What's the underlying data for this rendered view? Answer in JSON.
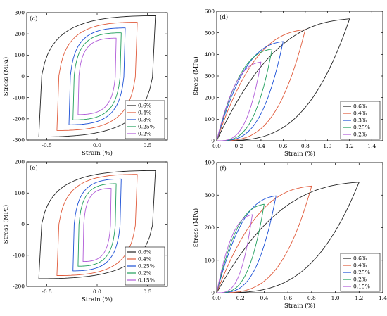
{
  "chart_data": [
    {
      "id": "c",
      "type": "line",
      "panel_label": "(c)",
      "xlabel": "Strain (%)",
      "ylabel": "Stress (MPa)",
      "xlim": [
        -0.7,
        0.7
      ],
      "ylim": [
        -300,
        300
      ],
      "xticks": [
        -0.5,
        0.0,
        0.5
      ],
      "xtick_labels": [
        "-0.5",
        "0.0",
        "0.5"
      ],
      "yticks": [
        -300,
        -200,
        -100,
        0,
        100,
        200,
        300
      ],
      "ytick_labels": [
        "-300",
        "-200",
        "-100",
        "0",
        "100",
        "200",
        "300"
      ],
      "legend_position": "bottom-right",
      "loop_kind": "symmetric",
      "series": [
        {
          "name": "0.6%",
          "color": "#222222",
          "strain_amplitude": 0.6,
          "x_peak": 0.58,
          "y_peak": 285,
          "x_min": -0.58,
          "y_min": -285
        },
        {
          "name": "0.4%",
          "color": "#e05a3a",
          "strain_amplitude": 0.4,
          "x_peak": 0.4,
          "y_peak": 255,
          "x_min": -0.4,
          "y_min": -255
        },
        {
          "name": "0.3%",
          "color": "#1a4fd6",
          "strain_amplitude": 0.3,
          "x_peak": 0.28,
          "y_peak": 228,
          "x_min": -0.28,
          "y_min": -228
        },
        {
          "name": "0.25%",
          "color": "#1f9e5a",
          "strain_amplitude": 0.25,
          "x_peak": 0.24,
          "y_peak": 205,
          "x_min": -0.24,
          "y_min": -205
        },
        {
          "name": "0.2%",
          "color": "#b05ad8",
          "strain_amplitude": 0.2,
          "x_peak": 0.19,
          "y_peak": 180,
          "x_min": -0.19,
          "y_min": -180
        }
      ]
    },
    {
      "id": "d",
      "type": "line",
      "panel_label": "(d)",
      "xlabel": "Strain (%)",
      "ylabel": "Stress (MPa)",
      "xlim": [
        0.0,
        1.5
      ],
      "ylim": [
        0,
        600
      ],
      "xticks": [
        0.0,
        0.2,
        0.4,
        0.6,
        0.8,
        1.0,
        1.2,
        1.4
      ],
      "xtick_labels": [
        "0.0",
        "0.2",
        "0.4",
        "0.6",
        "0.8",
        "1.0",
        "1.2",
        "1.4"
      ],
      "yticks": [
        0,
        100,
        200,
        300,
        400,
        500,
        600
      ],
      "ytick_labels": [
        "0",
        "100",
        "200",
        "300",
        "400",
        "500",
        "600"
      ],
      "legend_position": "bottom-right",
      "loop_kind": "tensile",
      "series": [
        {
          "name": "0.6%",
          "color": "#222222",
          "x_peak": 1.2,
          "y_peak": 565
        },
        {
          "name": "0.4%",
          "color": "#e05a3a",
          "x_peak": 0.8,
          "y_peak": 515
        },
        {
          "name": "0.3%",
          "color": "#1a4fd6",
          "x_peak": 0.6,
          "y_peak": 460
        },
        {
          "name": "0.25%",
          "color": "#1f9e5a",
          "x_peak": 0.5,
          "y_peak": 425
        },
        {
          "name": "0.2%",
          "color": "#b05ad8",
          "x_peak": 0.4,
          "y_peak": 365
        }
      ]
    },
    {
      "id": "e",
      "type": "line",
      "panel_label": "(e)",
      "xlabel": "Strain (%)",
      "ylabel": "Stress (MPa)",
      "xlim": [
        -0.7,
        0.7
      ],
      "ylim": [
        -200,
        200
      ],
      "xticks": [
        -0.5,
        0.0,
        0.5
      ],
      "xtick_labels": [
        "-0.5",
        "0.0",
        "0.5"
      ],
      "yticks": [
        -200,
        -100,
        0,
        100,
        200
      ],
      "ytick_labels": [
        "-200",
        "-100",
        "0",
        "100",
        "200"
      ],
      "legend_position": "bottom-right",
      "loop_kind": "symmetric",
      "series": [
        {
          "name": "0.6%",
          "color": "#222222",
          "x_peak": 0.58,
          "y_peak": 172,
          "x_min": -0.58,
          "y_min": -175
        },
        {
          "name": "0.4%",
          "color": "#e05a3a",
          "x_peak": 0.4,
          "y_peak": 160,
          "x_min": -0.4,
          "y_min": -165
        },
        {
          "name": "0.25%",
          "color": "#1a4fd6",
          "x_peak": 0.24,
          "y_peak": 145,
          "x_min": -0.24,
          "y_min": -150
        },
        {
          "name": "0.2%",
          "color": "#1f9e5a",
          "x_peak": 0.19,
          "y_peak": 130,
          "x_min": -0.19,
          "y_min": -135
        },
        {
          "name": "0.15%",
          "color": "#b05ad8",
          "x_peak": 0.14,
          "y_peak": 115,
          "x_min": -0.14,
          "y_min": -120
        }
      ]
    },
    {
      "id": "f",
      "type": "line",
      "panel_label": "(f)",
      "xlabel": "Strain (%)",
      "ylabel": "Stress (MPa)",
      "xlim": [
        0.0,
        1.4
      ],
      "ylim": [
        0,
        400
      ],
      "xticks": [
        0.0,
        0.2,
        0.4,
        0.6,
        0.8,
        1.0,
        1.2,
        1.4
      ],
      "xtick_labels": [
        "0.0",
        "0.2",
        "0.4",
        "0.6",
        "0.8",
        "1.0",
        "1.2",
        "1.4"
      ],
      "yticks": [
        0,
        100,
        200,
        300,
        400
      ],
      "ytick_labels": [
        "0",
        "100",
        "200",
        "300",
        "400"
      ],
      "legend_position": "bottom-right",
      "loop_kind": "tensile",
      "series": [
        {
          "name": "0.6%",
          "color": "#222222",
          "x_peak": 1.2,
          "y_peak": 340
        },
        {
          "name": "0.4%",
          "color": "#e05a3a",
          "x_peak": 0.8,
          "y_peak": 328
        },
        {
          "name": "0.25%",
          "color": "#1a4fd6",
          "x_peak": 0.5,
          "y_peak": 298
        },
        {
          "name": "0.2%",
          "color": "#1f9e5a",
          "x_peak": 0.4,
          "y_peak": 272
        },
        {
          "name": "0.15%",
          "color": "#b05ad8",
          "x_peak": 0.3,
          "y_peak": 240
        }
      ]
    }
  ]
}
